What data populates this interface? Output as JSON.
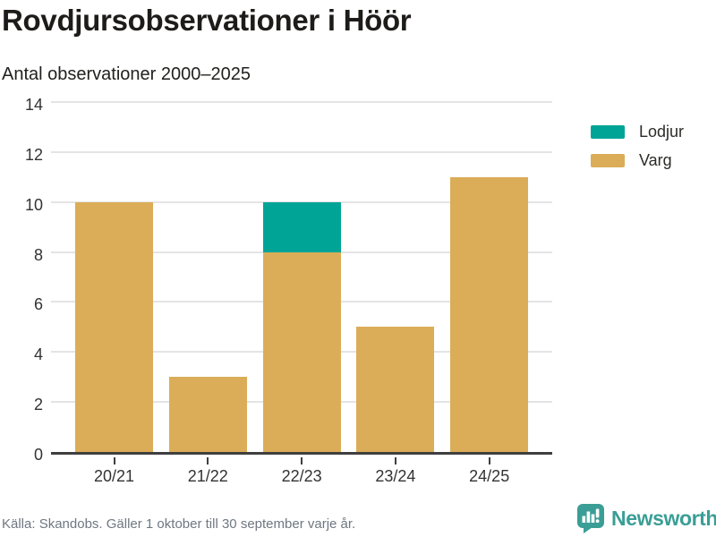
{
  "header": {
    "title": "Rovdjursobservationer i Höör",
    "subtitle": "Antal observationer 2000–2025"
  },
  "chart_data": {
    "type": "bar",
    "stacked": true,
    "categories": [
      "20/21",
      "21/22",
      "22/23",
      "23/24",
      "24/25"
    ],
    "series": [
      {
        "name": "Lodjur",
        "color": "#00A497",
        "values": [
          0,
          0,
          2,
          0,
          0
        ]
      },
      {
        "name": "Varg",
        "color": "#DBAD58",
        "values": [
          10,
          3,
          8,
          5,
          11
        ]
      }
    ],
    "title": "Rovdjursobservationer i Höör",
    "subtitle": "Antal observationer 2000–2025",
    "xlabel": "",
    "ylabel": "",
    "ylim": [
      0,
      14
    ],
    "yticks": [
      0,
      2,
      4,
      6,
      8,
      10,
      12,
      14
    ],
    "grid": true,
    "legend_position": "right",
    "legend_entries": [
      "Lodjur",
      "Varg"
    ]
  },
  "legend": {
    "items": [
      {
        "label": "Lodjur",
        "color": "#00A497"
      },
      {
        "label": "Varg",
        "color": "#DBAD58"
      }
    ]
  },
  "footer": {
    "source": "Källa: Skandobs. Gäller 1 oktober till 30 september varje år."
  },
  "branding": {
    "name": "Newsworthy",
    "icon": "bar-chart-speech-bubble-icon",
    "color": "#3A9E96"
  },
  "colors": {
    "lodjur": "#00A497",
    "varg": "#DBAD58",
    "gridline": "#E4E4E4",
    "axis": "#3F3F3F",
    "text_dark": "#1D1C19",
    "text_axis": "#333333",
    "text_footer": "#6F7781",
    "brand_teal": "#3A9E96"
  }
}
